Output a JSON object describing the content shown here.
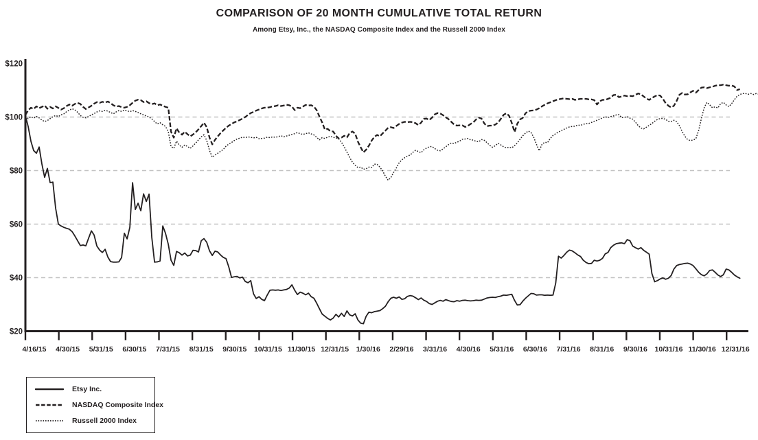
{
  "title": "COMPARISON OF 20 MONTH CUMULATIVE TOTAL RETURN",
  "subtitle": "Among Etsy, Inc., the NASDAQ Composite Index and the Russell 2000 Index",
  "colors": {
    "line": "#231f20",
    "grid": "#c2c2c2",
    "text": "#231f20",
    "background": "#ffffff"
  },
  "legend": {
    "items": [
      {
        "label": "Etsy Inc.",
        "style": "solid"
      },
      {
        "label": "NASDAQ Composite Index",
        "style": "dashed"
      },
      {
        "label": "Russell 2000 Index",
        "style": "dotted"
      }
    ]
  },
  "chart_data": {
    "type": "line",
    "title": "COMPARISON OF 20 MONTH CUMULATIVE TOTAL RETURN",
    "subtitle": "Among Etsy, Inc., the NASDAQ Composite Index and the Russell 2000 Index",
    "xlabel": "",
    "ylabel": "",
    "grid": "horizontal-dashed",
    "legend_position": "bottom-left",
    "x_tick_labels": [
      "4/16/15",
      "4/30/15",
      "5/31/15",
      "6/30/15",
      "7/31/15",
      "8/31/15",
      "9/30/15",
      "10/31/15",
      "11/30/15",
      "12/31/15",
      "1/30/16",
      "2/29/16",
      "3/31/16",
      "4/30/16",
      "5/31/16",
      "6/30/16",
      "7/31/16",
      "8/31/16",
      "9/30/16",
      "10/31/16",
      "11/30/16",
      "12/31/16"
    ],
    "y_ticks": [
      {
        "label": "$120",
        "value": 120
      },
      {
        "label": "$100",
        "value": 100
      },
      {
        "label": "$80",
        "value": 80
      },
      {
        "label": "$60",
        "value": 60
      },
      {
        "label": "$40",
        "value": 40
      },
      {
        "label": "$20",
        "value": 20
      }
    ],
    "y_axis": {
      "min": 20,
      "max": 120,
      "gridlines_at": [
        100,
        80,
        60,
        40
      ]
    },
    "x_axis_note": "x in months since 4/16/15; tick i = month index i",
    "series": [
      {
        "id": "etsy",
        "name": "Etsy Inc.",
        "style": "solid",
        "x0": 0,
        "dx": 0.0823,
        "values": [
          100.5,
          96.5,
          91,
          87.5,
          86.5,
          88.8,
          82.5,
          77.5,
          80.8,
          75.5,
          75.7,
          66,
          60,
          59.3,
          58.8,
          58.4,
          58.1,
          57.2,
          55.6,
          53.8,
          52,
          52.2,
          51.9,
          54.8,
          57.5,
          55.9,
          51.8,
          50.3,
          49.4,
          50.6,
          47.7,
          46,
          45.8,
          45.8,
          45.9,
          47.5,
          56.6,
          54.5,
          58.8,
          75.5,
          65.5,
          67.8,
          65,
          71.3,
          68.5,
          71.2,
          55,
          45.8,
          45.9,
          46.2,
          59.3,
          56.5,
          52.5,
          46.5,
          44.6,
          49.8,
          49.3,
          48.4,
          49.2,
          48.1,
          48.4,
          50.2,
          50.1,
          49.6,
          53.8,
          54.6,
          53.2,
          50,
          48.3,
          49.9,
          49.6,
          48.5,
          47.6,
          47.1,
          44,
          40.1,
          40.3,
          40.5,
          39.9,
          40.2,
          38.6,
          38.1,
          38.9,
          34,
          32.2,
          32.9,
          31.9,
          31.4,
          33.5,
          35.3,
          35.4,
          35.3,
          35.4,
          35.2,
          35.4,
          35.6,
          36.1,
          37.3,
          35.3,
          33.7,
          34.6,
          34.2,
          33.6,
          34.2,
          32.9,
          32.3,
          30.5,
          28.4,
          26.4,
          25.6,
          24.8,
          24.2,
          24.9,
          26.3,
          25.3,
          26.7,
          25.5,
          27.6,
          26.1,
          25.7,
          26.5,
          24.2,
          23,
          22.8,
          25.6,
          27.1,
          26.9,
          27.3,
          27.5,
          27.7,
          28.4,
          29.3,
          31,
          32.3,
          32.7,
          32.3,
          32.8,
          31.9,
          32.1,
          33,
          33.3,
          33.1,
          32.5,
          31.8,
          32.4,
          31.6,
          31.1,
          30.3,
          30,
          30.6,
          31.2,
          31.5,
          31.2,
          31.8,
          31.4,
          31.1,
          31,
          31.4,
          31.2,
          31.5,
          31.6,
          31.4,
          31.3,
          31.4,
          31.6,
          31.5,
          31.6,
          32,
          32.4,
          32.6,
          32.7,
          32.6,
          32.9,
          33.1,
          33.5,
          33.4,
          33.6,
          33.8,
          31.5,
          29.8,
          29.9,
          31.2,
          32.3,
          33.2,
          34.1,
          34,
          33.5,
          33.6,
          33.6,
          33.4,
          33.5,
          33.4,
          33.5,
          38,
          48,
          47.3,
          48.3,
          49.5,
          50.3,
          50,
          49.3,
          48.5,
          47.9,
          46.5,
          45.7,
          45.2,
          45.3,
          46.5,
          46.2,
          46.5,
          47.2,
          48.9,
          49.4,
          51.2,
          52.1,
          52.7,
          52.9,
          53,
          52.7,
          54.2,
          53.8,
          51.8,
          51.2,
          50.7,
          51.2,
          50.2,
          49.5,
          48.8,
          41.5,
          38.5,
          38.9,
          39.5,
          39.9,
          39.4,
          39.8,
          40.8,
          43.2,
          44.5,
          44.9,
          45.1,
          45.3,
          45.4,
          45.1,
          44.5,
          43.3,
          42,
          41.1,
          40.7,
          41.4,
          42.7,
          42.9,
          42,
          41,
          40.4,
          41.1,
          43.2,
          42.9,
          42,
          41,
          40.3,
          39.8
        ]
      },
      {
        "id": "nasdaq",
        "name": "NASDAQ Composite Index",
        "style": "dashed",
        "x0": 0,
        "dx": 0.0823,
        "values": [
          100.8,
          102.5,
          103.5,
          103,
          104,
          103.3,
          103.8,
          104.3,
          103.1,
          103.8,
          103.2,
          104,
          103.4,
          102.8,
          103.3,
          104.1,
          104.7,
          104.2,
          104.9,
          105.3,
          104.9,
          103.8,
          103,
          103.6,
          104.2,
          105,
          105.6,
          105.3,
          105.7,
          105.4,
          105.8,
          105.2,
          104.4,
          103.9,
          104.1,
          103.7,
          103.5,
          103.8,
          104.4,
          105.3,
          106.1,
          106.5,
          106.3,
          105.6,
          105.9,
          105.2,
          104.8,
          105.1,
          104.4,
          104.7,
          104.2,
          103.8,
          103.5,
          94.5,
          92.3,
          95.8,
          94.2,
          93.4,
          94.5,
          93.6,
          92.8,
          93.5,
          94.3,
          95.4,
          96.6,
          97.9,
          96.2,
          92.3,
          89.8,
          91.5,
          92.8,
          94,
          95,
          96,
          96.8,
          97.4,
          98,
          98.4,
          98.9,
          99.4,
          100,
          100.8,
          101.5,
          101.9,
          102.4,
          102.8,
          103.2,
          103.5,
          103.5,
          103.7,
          104,
          104.1,
          104.4,
          104.1,
          104.3,
          104.6,
          104.4,
          103.9,
          102.6,
          103.5,
          103.3,
          103.9,
          104.5,
          104.3,
          104.4,
          103.9,
          102.6,
          100.2,
          98,
          95.3,
          95.6,
          94.7,
          94.6,
          93,
          92,
          92.3,
          93,
          92.4,
          94,
          94.6,
          93.8,
          90.8,
          88.7,
          86.8,
          87.8,
          89.3,
          91.2,
          92.6,
          93.3,
          92.8,
          93.9,
          94.9,
          96,
          96.2,
          95.9,
          96.7,
          97.4,
          97.9,
          98.2,
          98.1,
          98.2,
          98.1,
          97.7,
          97,
          97.9,
          99.3,
          99.4,
          98.9,
          99.8,
          101,
          101.5,
          101.3,
          100.7,
          99.9,
          99.2,
          98.2,
          97.2,
          96.8,
          96.9,
          96.9,
          96.3,
          96.7,
          97.4,
          98,
          99.1,
          99.8,
          99.4,
          97.6,
          96.6,
          96.8,
          96.8,
          97.2,
          97.9,
          99.3,
          100.8,
          101.4,
          100.5,
          97.8,
          94.4,
          97.5,
          99.1,
          99.7,
          101.4,
          102.2,
          102.4,
          102.5,
          102.8,
          103.3,
          104,
          104.6,
          105.1,
          105.5,
          105.9,
          106.3,
          106.6,
          106.8,
          107,
          106.8,
          106.7,
          106.8,
          106.4,
          106.6,
          106.8,
          106.8,
          106.8,
          106.6,
          106.6,
          106.3,
          104.7,
          105.9,
          106.4,
          106.4,
          106.8,
          107.2,
          108.2,
          108.3,
          107.4,
          107.7,
          108,
          107.8,
          107.9,
          107.8,
          108.3,
          108.8,
          108.5,
          107.7,
          106.9,
          106.4,
          107.1,
          107.7,
          108.2,
          108,
          106.8,
          105.2,
          104.2,
          103.6,
          104.2,
          106,
          108.3,
          109,
          108.4,
          108.5,
          109.2,
          109.8,
          109.1,
          110.1,
          111,
          111.1,
          110.8,
          111.1,
          111.3,
          111.7,
          111.9,
          111.9,
          112.1,
          111.9,
          111.7,
          111.8,
          111.4,
          110.1,
          110.4
        ]
      },
      {
        "id": "russell",
        "name": "Russell 2000 Index",
        "style": "dotted",
        "x0": 0,
        "dx": 0.0823,
        "values": [
          100.3,
          99.4,
          100.1,
          99.6,
          100.2,
          99.7,
          98.9,
          98.3,
          98.7,
          99.4,
          100.1,
          100.6,
          100.2,
          100.8,
          101.2,
          102,
          102.6,
          103.1,
          102.7,
          101.8,
          100.6,
          99.9,
          99.7,
          100.2,
          100.8,
          101.3,
          101.9,
          102.3,
          102.1,
          102.5,
          102.2,
          101.7,
          101.2,
          101.9,
          102.4,
          102.1,
          102.6,
          102.3,
          102,
          102.4,
          102.1,
          101.7,
          101.2,
          100.8,
          100.4,
          100,
          99.3,
          98.3,
          97.4,
          97.9,
          97.1,
          96.5,
          94.5,
          89,
          88.3,
          91,
          89.5,
          88.7,
          89.6,
          89,
          88.3,
          89.2,
          90.3,
          91.5,
          92.6,
          93.4,
          91.2,
          87.5,
          85,
          85.8,
          86.5,
          87.2,
          87.9,
          89.1,
          89.9,
          90.5,
          91.2,
          91.8,
          92.1,
          92.5,
          92.3,
          92.6,
          92.4,
          92.2,
          92.4,
          91.9,
          92,
          92.1,
          92.5,
          92.3,
          92.6,
          92.4,
          92.7,
          93,
          92.6,
          92.9,
          93.2,
          93.5,
          93.8,
          94.2,
          93.8,
          93.5,
          93.8,
          94.1,
          93.7,
          93.3,
          92.4,
          91.5,
          92.3,
          92,
          92.5,
          92.8,
          92.4,
          92.2,
          91.9,
          90.6,
          88.9,
          86.9,
          84.9,
          83.1,
          82,
          81.1,
          81.3,
          80.5,
          80.7,
          81.3,
          81.1,
          82.4,
          82.3,
          81.3,
          79.9,
          77.9,
          76.4,
          77.4,
          79.3,
          81,
          82.9,
          84,
          84.8,
          85.4,
          85.8,
          86.8,
          87.6,
          87.1,
          86.7,
          87.8,
          88.4,
          88.9,
          89,
          88.2,
          87.6,
          87.4,
          88.1,
          88.9,
          89.7,
          90.3,
          90.1,
          90.6,
          91,
          91.7,
          91.8,
          92,
          91.5,
          91.4,
          90.9,
          90.8,
          91.6,
          91.3,
          90.4,
          89.4,
          88.7,
          89.3,
          90.2,
          89.6,
          88.9,
          88.5,
          88.7,
          88.5,
          89.3,
          90.3,
          91.7,
          93,
          94,
          94.8,
          94.2,
          92.4,
          89.8,
          87.4,
          89.8,
          90.6,
          90.4,
          92,
          93.1,
          93.8,
          94.4,
          94.9,
          95.4,
          95.9,
          96.3,
          96.5,
          96.6,
          97,
          96.9,
          97.3,
          97.5,
          97.6,
          98,
          98.4,
          98.8,
          99.2,
          99.7,
          100.1,
          99.8,
          100.2,
          100.4,
          100.8,
          100.9,
          99.8,
          99.9,
          100.1,
          99.6,
          99.2,
          98.1,
          96.8,
          95.9,
          95.6,
          96.2,
          96.9,
          97.6,
          98.4,
          99.1,
          99.4,
          99.5,
          99.1,
          98.4,
          98.3,
          98.8,
          98.3,
          96.8,
          94.6,
          92.8,
          91.6,
          91.2,
          91.4,
          91.9,
          95,
          99.5,
          103.5,
          105.5,
          104.6,
          103.5,
          103.8,
          103.4,
          105,
          105.5,
          104.5,
          103.9,
          105,
          106.5,
          107.8,
          108.4,
          108.8,
          108.8,
          108.5,
          108.8,
          108.4,
          108.8,
          108.5,
          107.9,
          108.2
        ]
      }
    ]
  }
}
